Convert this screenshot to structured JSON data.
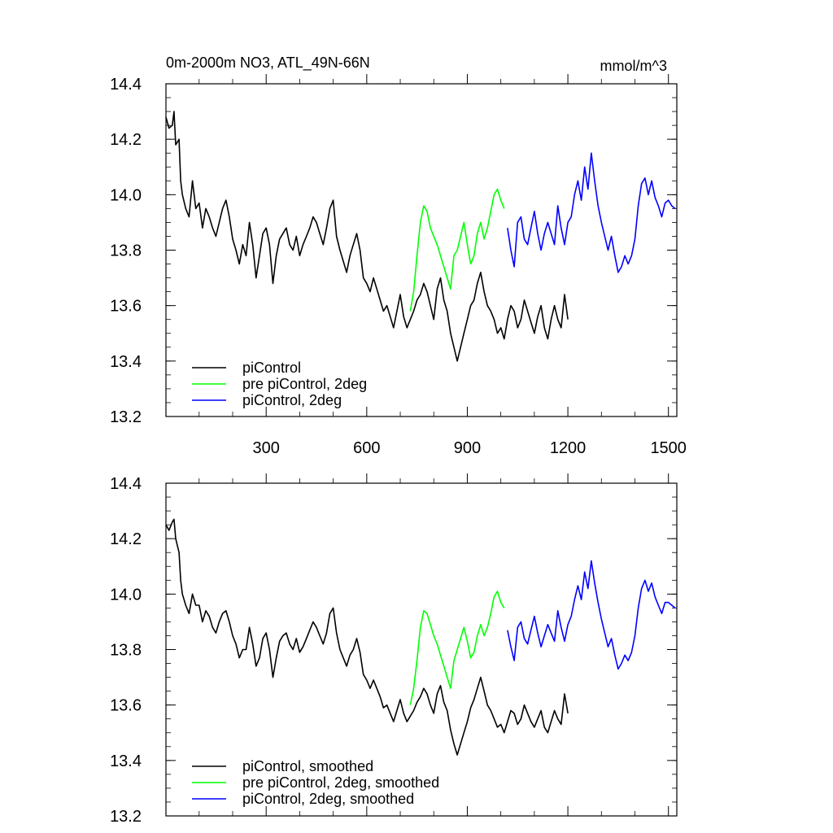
{
  "chart_data": [
    {
      "type": "line",
      "title": "0m-2000m NO3, ATL_49N-66N",
      "units": "mmol/m^3",
      "xlabel": "",
      "ylabel": "",
      "xlim": [
        1,
        1525
      ],
      "ylim": [
        13.2,
        14.4
      ],
      "xticks": [
        300,
        600,
        900,
        1200,
        1500
      ],
      "xtick_labels": [
        "300",
        "600",
        "900",
        "1200",
        "1500"
      ],
      "yticks": [
        13.2,
        13.4,
        13.6,
        13.8,
        14.0,
        14.2,
        14.4
      ],
      "ytick_labels": [
        "13.2",
        "13.4",
        "13.6",
        "13.8",
        "14.0",
        "14.2",
        "14.4"
      ],
      "grid": false,
      "legend_position": "bottom-left",
      "series": [
        {
          "name": "piControl",
          "color": "#000000",
          "x": [
            1,
            10,
            20,
            25,
            30,
            40,
            45,
            50,
            60,
            70,
            80,
            90,
            100,
            110,
            120,
            130,
            140,
            150,
            160,
            170,
            180,
            190,
            200,
            210,
            220,
            230,
            240,
            250,
            260,
            270,
            280,
            290,
            300,
            310,
            320,
            330,
            340,
            350,
            360,
            370,
            380,
            390,
            400,
            410,
            420,
            430,
            440,
            450,
            460,
            470,
            480,
            490,
            500,
            510,
            520,
            530,
            540,
            550,
            560,
            570,
            580,
            590,
            600,
            610,
            620,
            630,
            640,
            650,
            660,
            670,
            680,
            690,
            700,
            710,
            720,
            730,
            740,
            750,
            760,
            770,
            780,
            790,
            800,
            810,
            820,
            830,
            840,
            850,
            860,
            870,
            880,
            890,
            900,
            910,
            920,
            930,
            940,
            950,
            960,
            970,
            980,
            990,
            1000,
            1010,
            1020,
            1030,
            1040,
            1050,
            1060,
            1070,
            1080,
            1090,
            1100,
            1110,
            1120,
            1130,
            1140,
            1150,
            1160,
            1170,
            1180,
            1190,
            1200
          ],
          "values": [
            14.28,
            14.24,
            14.25,
            14.3,
            14.18,
            14.2,
            14.05,
            14.0,
            13.95,
            13.92,
            14.05,
            13.95,
            13.97,
            13.88,
            13.95,
            13.92,
            13.88,
            13.85,
            13.9,
            13.95,
            13.98,
            13.92,
            13.84,
            13.8,
            13.75,
            13.82,
            13.78,
            13.9,
            13.82,
            13.7,
            13.78,
            13.86,
            13.88,
            13.82,
            13.68,
            13.78,
            13.84,
            13.86,
            13.88,
            13.82,
            13.8,
            13.85,
            13.78,
            13.82,
            13.85,
            13.88,
            13.92,
            13.9,
            13.86,
            13.82,
            13.88,
            13.95,
            13.98,
            13.85,
            13.8,
            13.76,
            13.72,
            13.78,
            13.82,
            13.86,
            13.8,
            13.7,
            13.68,
            13.65,
            13.7,
            13.66,
            13.62,
            13.58,
            13.6,
            13.56,
            13.52,
            13.58,
            13.64,
            13.56,
            13.52,
            13.55,
            13.58,
            13.62,
            13.64,
            13.68,
            13.65,
            13.6,
            13.55,
            13.66,
            13.7,
            13.62,
            13.58,
            13.5,
            13.45,
            13.4,
            13.45,
            13.5,
            13.55,
            13.6,
            13.62,
            13.68,
            13.72,
            13.65,
            13.6,
            13.58,
            13.55,
            13.5,
            13.52,
            13.48,
            13.55,
            13.6,
            13.58,
            13.52,
            13.55,
            13.62,
            13.58,
            13.54,
            13.5,
            13.56,
            13.6,
            13.52,
            13.48,
            13.55,
            13.6,
            13.55,
            13.52,
            13.64,
            13.55
          ]
        },
        {
          "name": "pre piControl, 2deg",
          "color": "#00ff00",
          "x": [
            730,
            740,
            750,
            760,
            770,
            780,
            790,
            800,
            810,
            820,
            830,
            840,
            850,
            860,
            870,
            880,
            890,
            900,
            910,
            920,
            930,
            940,
            950,
            960,
            970,
            980,
            990,
            1000,
            1010
          ],
          "values": [
            13.58,
            13.65,
            13.78,
            13.9,
            13.96,
            13.94,
            13.88,
            13.85,
            13.82,
            13.78,
            13.74,
            13.7,
            13.66,
            13.78,
            13.8,
            13.85,
            13.9,
            13.82,
            13.75,
            13.78,
            13.86,
            13.9,
            13.84,
            13.88,
            13.94,
            14.0,
            14.02,
            13.98,
            13.95
          ]
        },
        {
          "name": "piControl, 2deg",
          "color": "#0000ff",
          "x": [
            1020,
            1030,
            1040,
            1050,
            1060,
            1070,
            1080,
            1090,
            1100,
            1110,
            1120,
            1130,
            1140,
            1150,
            1160,
            1170,
            1180,
            1190,
            1200,
            1210,
            1220,
            1230,
            1240,
            1250,
            1260,
            1270,
            1280,
            1290,
            1300,
            1310,
            1320,
            1330,
            1340,
            1350,
            1360,
            1370,
            1380,
            1390,
            1400,
            1410,
            1420,
            1430,
            1440,
            1450,
            1460,
            1470,
            1480,
            1490,
            1500,
            1510,
            1520
          ],
          "values": [
            13.88,
            13.8,
            13.74,
            13.9,
            13.92,
            13.84,
            13.82,
            13.88,
            13.94,
            13.86,
            13.8,
            13.86,
            13.9,
            13.86,
            13.82,
            13.96,
            13.88,
            13.82,
            13.9,
            13.92,
            14.0,
            14.05,
            13.98,
            14.1,
            14.02,
            14.15,
            14.05,
            13.96,
            13.9,
            13.85,
            13.8,
            13.85,
            13.78,
            13.72,
            13.74,
            13.78,
            13.75,
            13.78,
            13.84,
            13.96,
            14.04,
            14.06,
            14.0,
            14.05,
            13.99,
            13.96,
            13.92,
            13.97,
            13.98,
            13.96,
            13.95
          ]
        }
      ]
    },
    {
      "type": "line",
      "title": "",
      "xlabel": "",
      "ylabel": "",
      "xlim": [
        1,
        1525
      ],
      "ylim": [
        13.2,
        14.4
      ],
      "yticks": [
        13.2,
        13.4,
        13.6,
        13.8,
        14.0,
        14.2,
        14.4
      ],
      "ytick_labels": [
        "13.2",
        "13.4",
        "13.6",
        "13.8",
        "14.0",
        "14.2",
        "14.4"
      ],
      "xticks": [
        300,
        600,
        900,
        1200,
        1500
      ],
      "xtick_labels": [],
      "grid": false,
      "legend_position": "bottom-left",
      "series": [
        {
          "name": "piControl, smoothed",
          "color": "#000000",
          "x": [
            1,
            10,
            20,
            25,
            30,
            40,
            45,
            50,
            60,
            70,
            80,
            90,
            100,
            110,
            120,
            130,
            140,
            150,
            160,
            170,
            180,
            190,
            200,
            210,
            220,
            230,
            240,
            250,
            260,
            270,
            280,
            290,
            300,
            310,
            320,
            330,
            340,
            350,
            360,
            370,
            380,
            390,
            400,
            410,
            420,
            430,
            440,
            450,
            460,
            470,
            480,
            490,
            500,
            510,
            520,
            530,
            540,
            550,
            560,
            570,
            580,
            590,
            600,
            610,
            620,
            630,
            640,
            650,
            660,
            670,
            680,
            690,
            700,
            710,
            720,
            730,
            740,
            750,
            760,
            770,
            780,
            790,
            800,
            810,
            820,
            830,
            840,
            850,
            860,
            870,
            880,
            890,
            900,
            910,
            920,
            930,
            940,
            950,
            960,
            970,
            980,
            990,
            1000,
            1010,
            1020,
            1030,
            1040,
            1050,
            1060,
            1070,
            1080,
            1090,
            1100,
            1110,
            1120,
            1130,
            1140,
            1150,
            1160,
            1170,
            1180,
            1190,
            1200
          ],
          "values": [
            14.25,
            14.23,
            14.26,
            14.27,
            14.2,
            14.15,
            14.05,
            14.0,
            13.96,
            13.93,
            14.0,
            13.96,
            13.96,
            13.9,
            13.94,
            13.92,
            13.88,
            13.86,
            13.9,
            13.93,
            13.94,
            13.9,
            13.85,
            13.82,
            13.77,
            13.8,
            13.8,
            13.88,
            13.82,
            13.74,
            13.77,
            13.84,
            13.86,
            13.8,
            13.7,
            13.77,
            13.83,
            13.85,
            13.86,
            13.82,
            13.8,
            13.84,
            13.79,
            13.81,
            13.84,
            13.87,
            13.9,
            13.88,
            13.85,
            13.82,
            13.86,
            13.93,
            13.95,
            13.86,
            13.8,
            13.77,
            13.74,
            13.78,
            13.8,
            13.84,
            13.79,
            13.71,
            13.69,
            13.66,
            13.69,
            13.66,
            13.63,
            13.59,
            13.6,
            13.57,
            13.54,
            13.58,
            13.62,
            13.57,
            13.54,
            13.56,
            13.58,
            13.61,
            13.63,
            13.66,
            13.64,
            13.6,
            13.57,
            13.64,
            13.67,
            13.61,
            13.58,
            13.51,
            13.46,
            13.42,
            13.46,
            13.5,
            13.54,
            13.59,
            13.62,
            13.66,
            13.7,
            13.65,
            13.6,
            13.58,
            13.55,
            13.52,
            13.53,
            13.5,
            13.54,
            13.58,
            13.57,
            13.53,
            13.55,
            13.6,
            13.57,
            13.54,
            13.52,
            13.55,
            13.58,
            13.52,
            13.5,
            13.54,
            13.58,
            13.55,
            13.53,
            13.64,
            13.57
          ]
        },
        {
          "name": "pre piControl, 2deg, smoothed",
          "color": "#00ff00",
          "x": [
            730,
            740,
            750,
            760,
            770,
            780,
            790,
            800,
            810,
            820,
            830,
            840,
            850,
            860,
            870,
            880,
            890,
            900,
            910,
            920,
            930,
            940,
            950,
            960,
            970,
            980,
            990,
            1000,
            1010
          ],
          "values": [
            13.6,
            13.66,
            13.76,
            13.88,
            13.94,
            13.93,
            13.89,
            13.85,
            13.82,
            13.78,
            13.74,
            13.7,
            13.66,
            13.76,
            13.8,
            13.84,
            13.88,
            13.83,
            13.77,
            13.79,
            13.85,
            13.89,
            13.85,
            13.88,
            13.93,
            13.99,
            14.01,
            13.97,
            13.95
          ]
        },
        {
          "name": "piControl, 2deg, smoothed",
          "color": "#0000ff",
          "x": [
            1020,
            1030,
            1040,
            1050,
            1060,
            1070,
            1080,
            1090,
            1100,
            1110,
            1120,
            1130,
            1140,
            1150,
            1160,
            1170,
            1180,
            1190,
            1200,
            1210,
            1220,
            1230,
            1240,
            1250,
            1260,
            1270,
            1280,
            1290,
            1300,
            1310,
            1320,
            1330,
            1340,
            1350,
            1360,
            1370,
            1380,
            1390,
            1400,
            1410,
            1420,
            1430,
            1440,
            1450,
            1460,
            1470,
            1480,
            1490,
            1500,
            1510,
            1520
          ],
          "values": [
            13.87,
            13.81,
            13.76,
            13.88,
            13.9,
            13.84,
            13.82,
            13.87,
            13.92,
            13.86,
            13.81,
            13.85,
            13.89,
            13.86,
            13.83,
            13.94,
            13.88,
            13.83,
            13.89,
            13.92,
            13.98,
            14.03,
            13.98,
            14.08,
            14.02,
            14.12,
            14.04,
            13.97,
            13.91,
            13.86,
            13.81,
            13.84,
            13.78,
            13.73,
            13.75,
            13.78,
            13.76,
            13.79,
            13.85,
            13.95,
            14.02,
            14.05,
            14.01,
            14.04,
            13.99,
            13.96,
            13.93,
            13.97,
            13.97,
            13.96,
            13.95
          ]
        }
      ]
    }
  ]
}
